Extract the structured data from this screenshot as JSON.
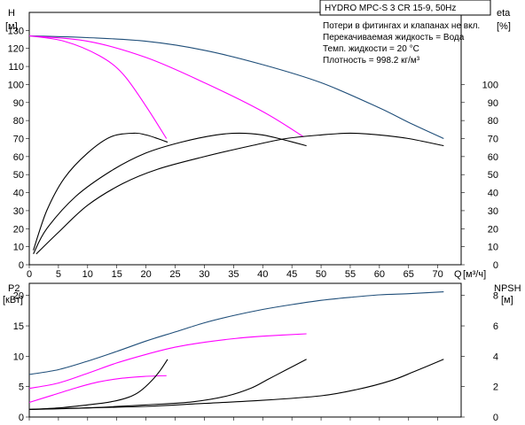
{
  "chart_data": [
    {
      "type": "line",
      "left_axis": {
        "label": "H",
        "unit": "[м]",
        "range": [
          0,
          140
        ],
        "ticks": [
          0,
          10,
          20,
          30,
          40,
          50,
          60,
          70,
          80,
          90,
          100,
          110,
          120,
          130
        ]
      },
      "right_axis": {
        "label": "eta",
        "unit": "[%]",
        "range": [
          0,
          140
        ],
        "ticks": [
          0,
          10,
          20,
          30,
          40,
          50,
          60,
          70,
          80,
          90,
          100
        ]
      },
      "x_axis": {
        "label": "Q",
        "unit": "[м³/ч]",
        "range": [
          0,
          74
        ],
        "ticks": [
          0,
          5,
          10,
          15,
          20,
          25,
          30,
          35,
          40,
          45,
          50,
          55,
          60,
          65,
          70
        ]
      },
      "legend_box": "HYDRO MPC-S 3 CR 15-9, 50Hz",
      "notes": [
        "Потери в фитингах и клапанах не вкл.",
        "Перекачиваемая жидкость = Вода",
        "Темп. жидкости = 20 °C",
        "Плотность = 998.2 кг/м³"
      ],
      "series": [
        {
          "color": "#1f4e79",
          "axis": "left",
          "x": [
            0,
            10,
            20,
            30,
            40,
            50,
            60,
            65,
            71
          ],
          "y": [
            127,
            126,
            124,
            119,
            111,
            101,
            87,
            79,
            70
          ]
        },
        {
          "color": "#ff00ff",
          "axis": "left",
          "x": [
            0,
            10,
            20,
            30,
            40,
            47
          ],
          "y": [
            127,
            124,
            115,
            101,
            85,
            71
          ]
        },
        {
          "color": "#ff00ff",
          "axis": "left",
          "x": [
            0,
            6,
            12,
            16,
            20,
            23.5
          ],
          "y": [
            127,
            124,
            116,
            106,
            88,
            70
          ]
        },
        {
          "color": "#000000",
          "axis": "right",
          "x": [
            0.7,
            3,
            6,
            10,
            14,
            18,
            20,
            22,
            23.7
          ],
          "y": [
            8,
            30,
            48,
            62,
            71,
            73,
            72,
            70,
            68
          ]
        },
        {
          "color": "#000000",
          "axis": "right",
          "x": [
            0.7,
            3,
            8,
            14,
            20,
            26,
            32,
            36,
            40,
            44,
            47.5
          ],
          "y": [
            6,
            20,
            38,
            52,
            62,
            68,
            72,
            73,
            72,
            69,
            66
          ]
        },
        {
          "color": "#000000",
          "axis": "right",
          "x": [
            1.2,
            5,
            10,
            16,
            22,
            30,
            38,
            44,
            50,
            55,
            60,
            65,
            71
          ],
          "y": [
            6,
            18,
            33,
            45,
            53,
            60,
            66,
            70,
            72,
            73,
            72,
            70,
            66
          ]
        }
      ]
    },
    {
      "type": "line",
      "left_axis": {
        "label": "P2",
        "unit": "[кВт]",
        "range": [
          0,
          22
        ],
        "ticks": [
          0,
          5,
          10,
          15,
          20
        ]
      },
      "right_axis": {
        "label": "NPSH",
        "unit": "[м]",
        "range": [
          0,
          8.8
        ],
        "ticks": [
          0,
          2,
          4,
          6,
          8
        ]
      },
      "x_axis": {
        "range": [
          0,
          74
        ]
      },
      "series": [
        {
          "color": "#1f4e79",
          "axis": "left",
          "x": [
            0,
            5,
            10,
            15,
            20,
            25,
            30,
            35,
            40,
            45,
            50,
            55,
            60,
            65,
            71
          ],
          "y": [
            7,
            7.8,
            9.2,
            10.8,
            12.5,
            14,
            15.5,
            16.7,
            17.7,
            18.5,
            19.2,
            19.7,
            20.1,
            20.3,
            20.6
          ]
        },
        {
          "color": "#ff00ff",
          "axis": "left",
          "x": [
            0,
            5,
            10,
            15,
            20,
            25,
            30,
            35,
            40,
            47.5
          ],
          "y": [
            4.7,
            5.6,
            7.2,
            8.9,
            10.3,
            11.5,
            12.3,
            12.9,
            13.3,
            13.7
          ]
        },
        {
          "color": "#ff00ff",
          "axis": "left",
          "x": [
            0,
            4,
            8,
            12,
            16,
            20,
            23.5
          ],
          "y": [
            2.4,
            3.6,
            4.8,
            5.8,
            6.4,
            6.7,
            6.8
          ]
        },
        {
          "color": "#000000",
          "axis": "right",
          "x": [
            0,
            5,
            10,
            14,
            17,
            19,
            21,
            22.5,
            23.7
          ],
          "y": [
            0.5,
            0.6,
            0.8,
            1.0,
            1.3,
            1.7,
            2.4,
            3.1,
            3.8
          ]
        },
        {
          "color": "#000000",
          "axis": "right",
          "x": [
            0,
            10,
            20,
            28,
            34,
            38,
            41,
            44,
            47.5
          ],
          "y": [
            0.5,
            0.6,
            0.8,
            1.0,
            1.4,
            1.9,
            2.5,
            3.1,
            3.8
          ]
        },
        {
          "color": "#000000",
          "axis": "right",
          "x": [
            0,
            10,
            20,
            30,
            40,
            50,
            56,
            62,
            66,
            71
          ],
          "y": [
            0.5,
            0.6,
            0.7,
            0.9,
            1.1,
            1.4,
            1.8,
            2.4,
            3.0,
            3.8
          ]
        }
      ]
    }
  ]
}
